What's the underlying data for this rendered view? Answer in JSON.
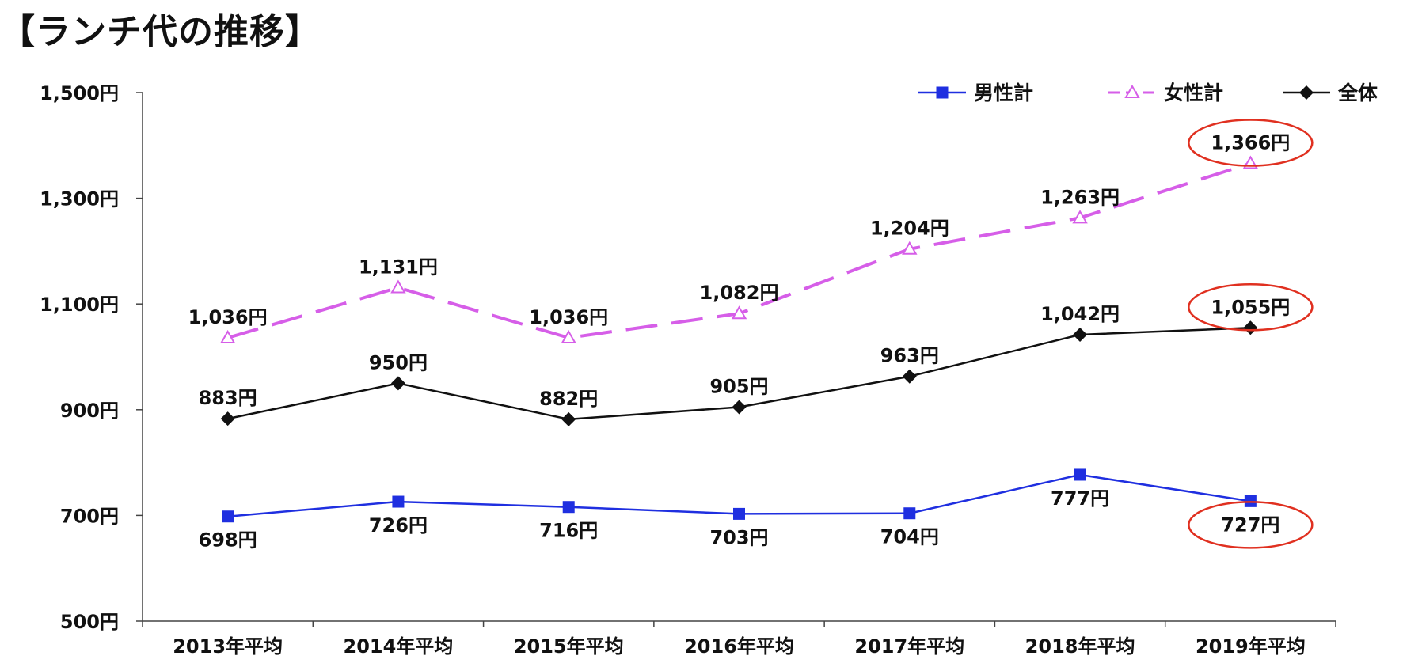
{
  "title": "【ランチ代の推移】",
  "chart_data": {
    "type": "line",
    "title": "【ランチ代の推移】",
    "xlabel": "",
    "ylabel": "",
    "categories": [
      "2013年平均",
      "2014年平均",
      "2015年平均",
      "2016年平均",
      "2017年平均",
      "2018年平均",
      "2019年平均"
    ],
    "ylim": [
      500,
      1500
    ],
    "yticks": [
      500,
      700,
      900,
      1100,
      1300,
      1500
    ],
    "ytick_labels": [
      "500円",
      "700円",
      "900円",
      "1,100円",
      "1,300円",
      "1,500円"
    ],
    "grid": false,
    "legend_position": "top-right",
    "series": [
      {
        "name": "男性計",
        "color": "#1f2fe0",
        "marker": "square",
        "line_style": "solid",
        "values": [
          698,
          726,
          716,
          703,
          704,
          777,
          727
        ],
        "labels": [
          "698円",
          "726円",
          "716円",
          "703円",
          "704円",
          "777円",
          "727円"
        ],
        "label_position": "below"
      },
      {
        "name": "女性計",
        "color": "#d65ee8",
        "marker": "triangle-open",
        "line_style": "dashed",
        "values": [
          1036,
          1131,
          1036,
          1082,
          1204,
          1263,
          1366
        ],
        "labels": [
          "1,036円",
          "1,131円",
          "1,036円",
          "1,082円",
          "1,204円",
          "1,263円",
          "1,366円"
        ],
        "label_position": "above"
      },
      {
        "name": "全体",
        "color": "#111111",
        "marker": "diamond",
        "line_style": "solid",
        "values": [
          883,
          950,
          882,
          905,
          963,
          1042,
          1055
        ],
        "labels": [
          "883円",
          "950円",
          "882円",
          "905円",
          "963円",
          "1,042円",
          "1,055円"
        ],
        "label_position": "above"
      }
    ],
    "highlight_color": "#e03020",
    "highlighted_category": "2019年平均"
  }
}
